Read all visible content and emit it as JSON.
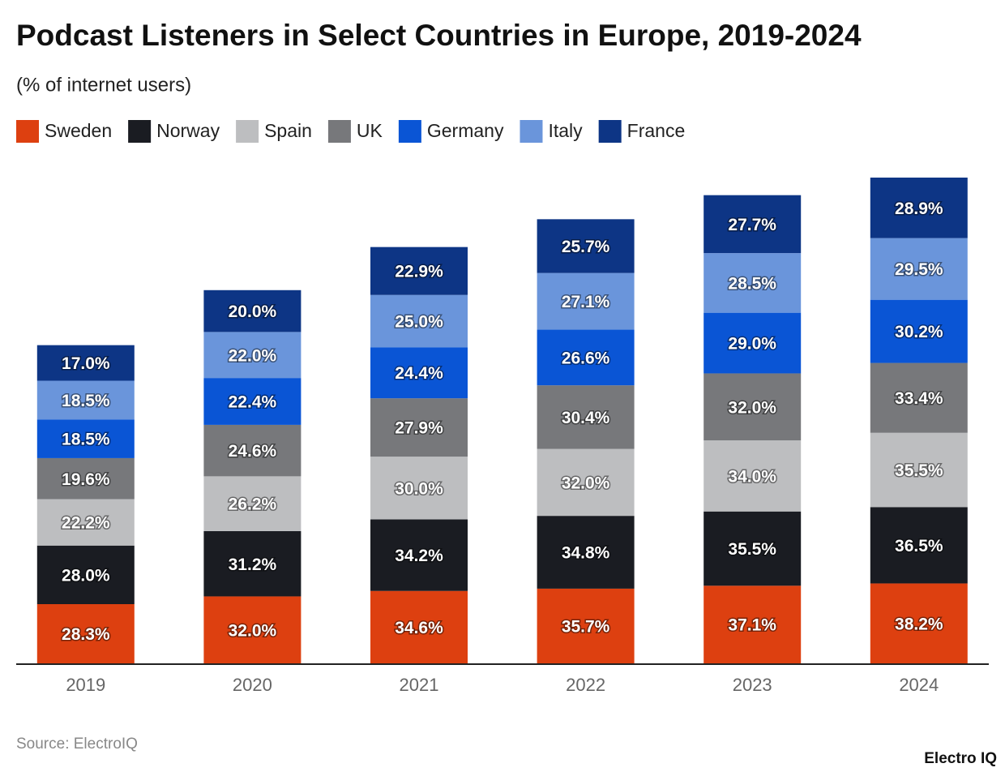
{
  "chart_data": {
    "type": "stacked_bar",
    "title": "Podcast Listeners in Select Countries in Europe, 2019-2024",
    "subtitle": "(% of internet users)",
    "source": "Source: ElectroIQ",
    "brand": "Electro IQ",
    "categories": [
      "2019",
      "2020",
      "2021",
      "2022",
      "2023",
      "2024"
    ],
    "series": [
      {
        "name": "Sweden",
        "color": "#dd4010",
        "values": [
          28.3,
          32.0,
          34.6,
          35.7,
          37.1,
          38.2
        ],
        "value_labels": [
          "28.3%",
          "32.0%",
          "34.6%",
          "35.7%",
          "37.1%",
          "38.2%"
        ]
      },
      {
        "name": "Norway",
        "color": "#1a1c22",
        "values": [
          28.0,
          31.2,
          34.2,
          34.8,
          35.5,
          36.5
        ],
        "value_labels": [
          "28.0%",
          "31.2%",
          "34.2%",
          "34.8%",
          "35.5%",
          "36.5%"
        ]
      },
      {
        "name": "Spain",
        "color": "#bdbec0",
        "values": [
          22.2,
          26.2,
          30.0,
          32.0,
          34.0,
          35.5
        ],
        "value_labels": [
          "22.2%",
          "26.2%",
          "30.0%",
          "32.0%",
          "34.0%",
          "35.5%"
        ]
      },
      {
        "name": "UK",
        "color": "#77787b",
        "values": [
          19.6,
          24.6,
          27.9,
          30.4,
          32.0,
          33.4
        ],
        "value_labels": [
          "19.6%",
          "24.6%",
          "27.9%",
          "30.4%",
          "32.0%",
          "33.4%"
        ]
      },
      {
        "name": "Germany",
        "color": "#0a55d5",
        "values": [
          18.5,
          22.4,
          24.4,
          26.6,
          29.0,
          30.2
        ],
        "value_labels": [
          "18.5%",
          "22.4%",
          "24.4%",
          "26.6%",
          "29.0%",
          "30.2%"
        ]
      },
      {
        "name": "Italy",
        "color": "#6a95db",
        "values": [
          18.5,
          22.0,
          25.0,
          27.1,
          28.5,
          29.5
        ],
        "value_labels": [
          "18.5%",
          "22.0%",
          "25.0%",
          "27.1%",
          "28.5%",
          "29.5%"
        ]
      },
      {
        "name": "France",
        "color": "#0d3585",
        "values": [
          17.0,
          20.0,
          22.9,
          25.7,
          27.7,
          28.9
        ],
        "value_labels": [
          "17.0%",
          "20.0%",
          "22.9%",
          "25.7%",
          "27.7%",
          "28.9%"
        ]
      }
    ]
  }
}
